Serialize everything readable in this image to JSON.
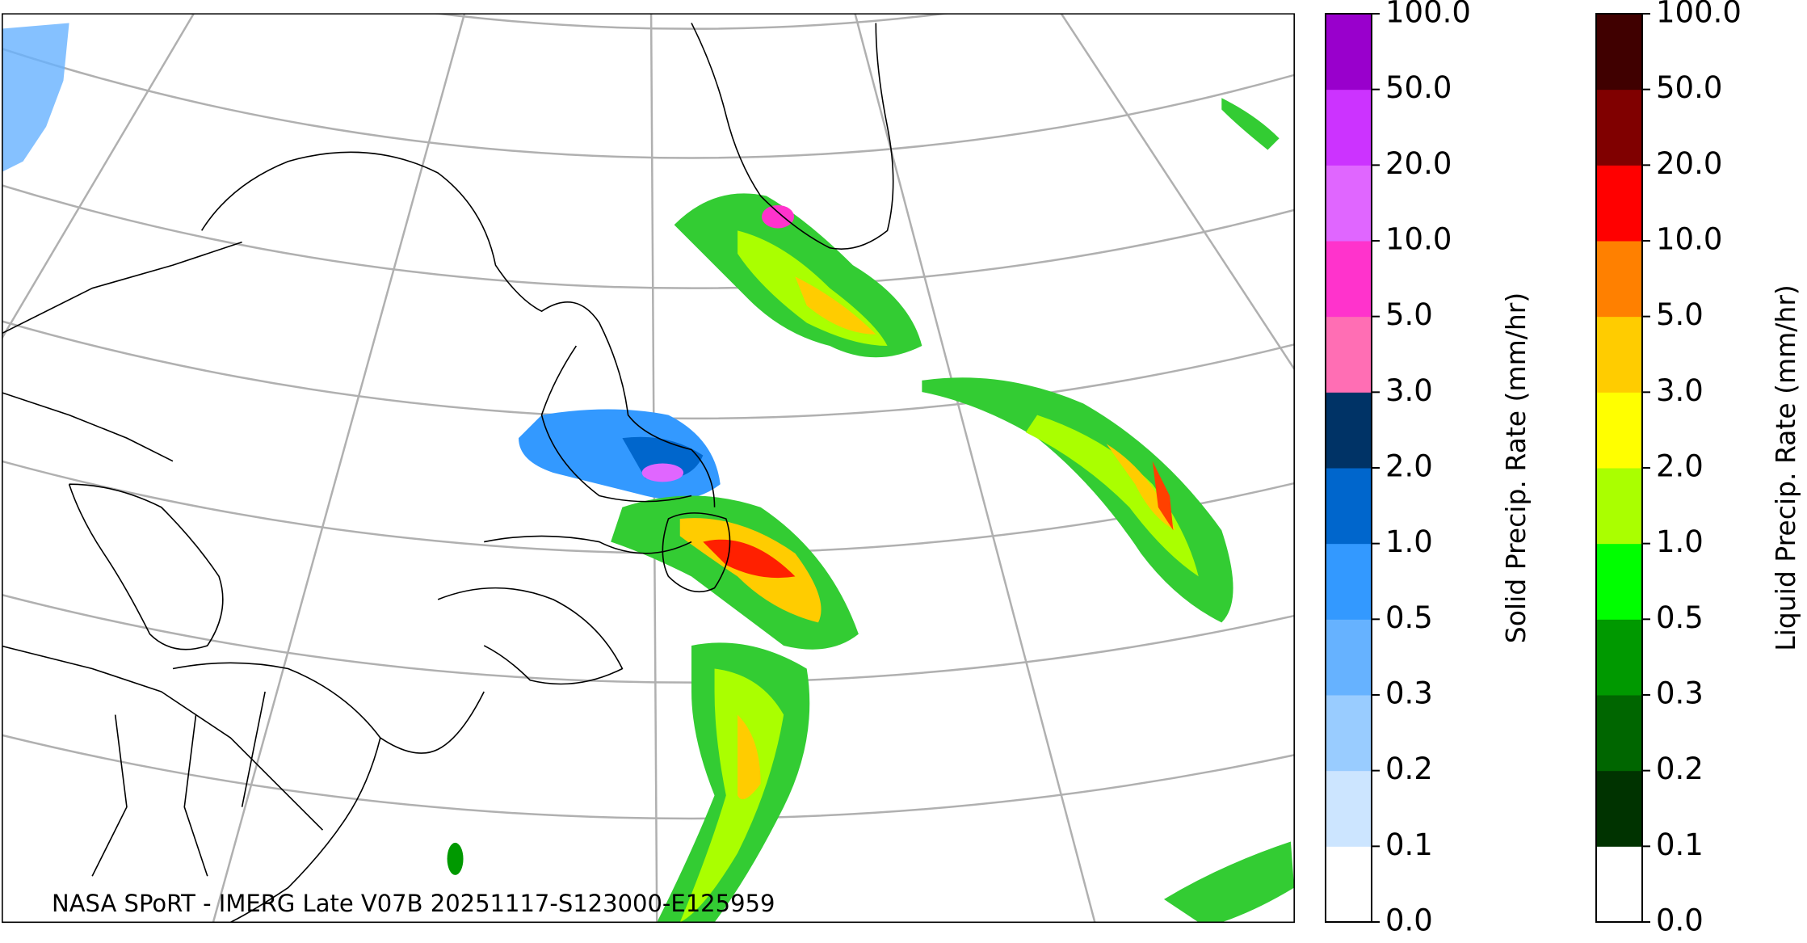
{
  "map": {
    "caption": "NASA SPoRT - IMERG Late V07B 20251117-S123000-E125959"
  },
  "colorbars": [
    {
      "label": "Solid Precip. Rate (mm/hr)",
      "ticks": [
        "0.0",
        "0.1",
        "0.2",
        "0.3",
        "0.5",
        "1.0",
        "2.0",
        "3.0",
        "5.0",
        "10.0",
        "20.0",
        "50.0",
        "100.0"
      ],
      "colors": [
        "#ffffff",
        "#cce5ff",
        "#99ccff",
        "#66b2ff",
        "#3399ff",
        "#0066cc",
        "#003366",
        "#ff6eb4",
        "#ff33cc",
        "#e066ff",
        "#cc33ff",
        "#9900cc"
      ]
    },
    {
      "label": "Liquid Precip. Rate (mm/hr)",
      "ticks": [
        "0.0",
        "0.1",
        "0.2",
        "0.3",
        "0.5",
        "1.0",
        "2.0",
        "3.0",
        "5.0",
        "10.0",
        "20.0",
        "50.0",
        "100.0"
      ],
      "colors": [
        "#ffffff",
        "#003300",
        "#006600",
        "#009900",
        "#00ff00",
        "#aaff00",
        "#ffff00",
        "#ffcc00",
        "#ff8000",
        "#ff0000",
        "#800000",
        "#400000"
      ]
    }
  ]
}
